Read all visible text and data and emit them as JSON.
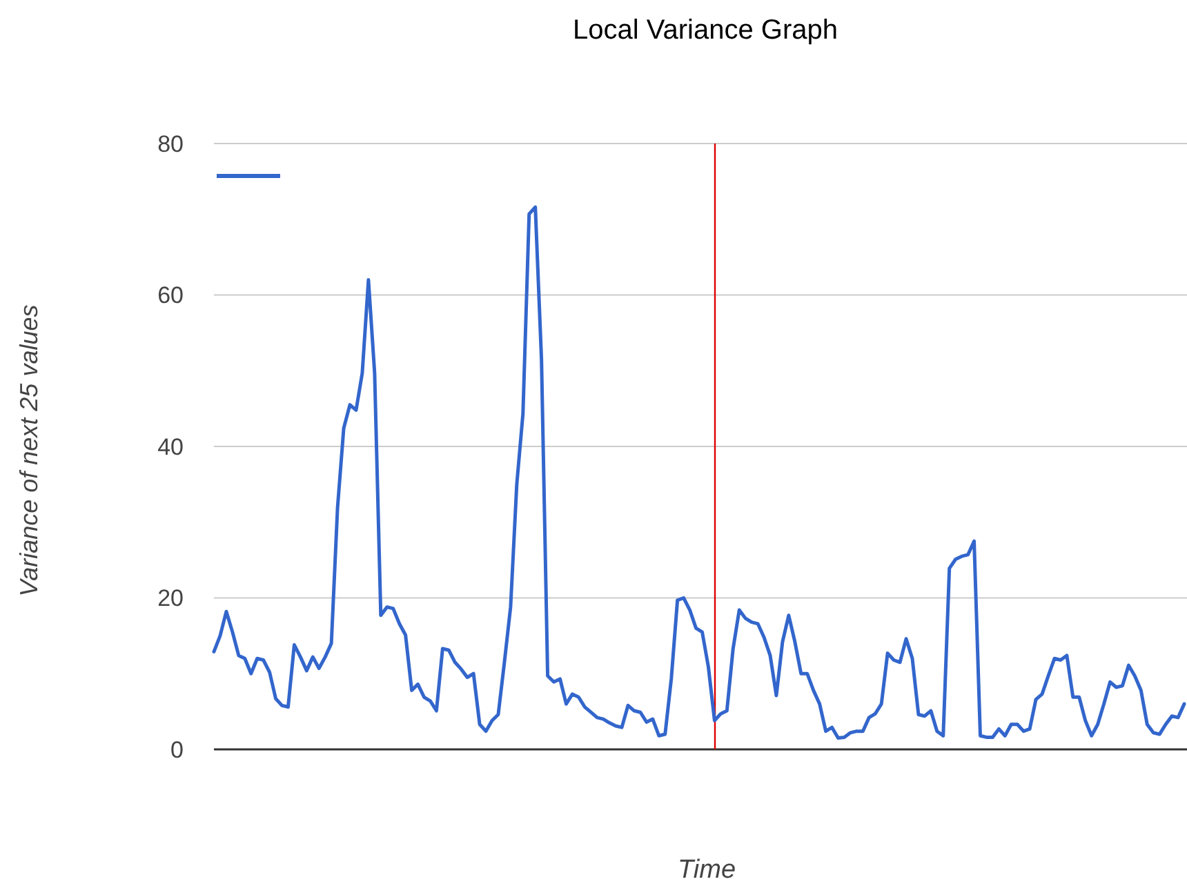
{
  "chart_data": {
    "type": "line",
    "title": "Local Variance Graph",
    "xlabel": "Time",
    "ylabel": "Variance of next 25 values",
    "categories": [
      null,
      null,
      null,
      null,
      null,
      null,
      null,
      null,
      null,
      null,
      null,
      null,
      null,
      null,
      null,
      null,
      null,
      null,
      null,
      null,
      null,
      null,
      null,
      null,
      null,
      null,
      null,
      null,
      null,
      null,
      null,
      null,
      null,
      null,
      null,
      null,
      null,
      null,
      null,
      null,
      null,
      null,
      null,
      null,
      null,
      null,
      null,
      null,
      null,
      null,
      null,
      null,
      null,
      null,
      null,
      null,
      null,
      null,
      null,
      null,
      null,
      null,
      null,
      null,
      null,
      null,
      null,
      null,
      null,
      null,
      null,
      null,
      null,
      null,
      null,
      null,
      null,
      null,
      null,
      null,
      null,
      null,
      null,
      null,
      null,
      null,
      null,
      null,
      null,
      null,
      null,
      null,
      null,
      null,
      null,
      null,
      null,
      null,
      null,
      null,
      null,
      null,
      null,
      null,
      null,
      null,
      null,
      null,
      null,
      null,
      null,
      null,
      null,
      null,
      null,
      null,
      null,
      null,
      null,
      null,
      null,
      null,
      null,
      null,
      null,
      null,
      null,
      null,
      null,
      null,
      null,
      null,
      null,
      null,
      null,
      null,
      null,
      null,
      null,
      null,
      null,
      null,
      null,
      null,
      null,
      null,
      null,
      null,
      null,
      null,
      null,
      null,
      null,
      null,
      null,
      null,
      null,
      null
    ],
    "series": [
      {
        "color": "#3366cc",
        "values": [
          12.9,
          15,
          18.2,
          15.5,
          12.4,
          12,
          10,
          12,
          11.8,
          10.2,
          6.7,
          5.8,
          5.6,
          13.8,
          12.2,
          10.4,
          12.2,
          10.7,
          12.2,
          14,
          31.9,
          42.4,
          45.5,
          44.8,
          49.7,
          62,
          49.7,
          17.7,
          18.8,
          18.6,
          16.6,
          15.1,
          7.8,
          8.6,
          6.9,
          6.4,
          5.1,
          13.3,
          13.1,
          11.5,
          10.6,
          9.5,
          10,
          3.3,
          2.4,
          3.8,
          4.6,
          11.5,
          18.8,
          35,
          44.3,
          70.7,
          71.6,
          51.5,
          9.7,
          8.9,
          9.3,
          6,
          7.3,
          6.9,
          5.6,
          4.9,
          4.2,
          4,
          3.5,
          3.1,
          2.9,
          5.8,
          5.1,
          4.9,
          3.6,
          4,
          1.8,
          2,
          9.3,
          19.7,
          20,
          18.4,
          16,
          15.5,
          10.9,
          3.8,
          4.7,
          5.1,
          13.3,
          18.4,
          17.3,
          16.8,
          16.6,
          14.8,
          12.4,
          7.1,
          14.2,
          17.7,
          14.2,
          10,
          10,
          7.8,
          6,
          2.4,
          2.9,
          1.5,
          1.6,
          2.2,
          2.4,
          2.4,
          4.2,
          4.7,
          6,
          12.7,
          11.8,
          11.5,
          14.6,
          12,
          4.6,
          4.4,
          5.1,
          2.4,
          1.8,
          23.9,
          25.1,
          25.5,
          25.7,
          27.5,
          1.8,
          1.6,
          1.6,
          2.7,
          1.8,
          3.3,
          3.3,
          2.4,
          2.7,
          6.6,
          7.3,
          9.7,
          12,
          11.8,
          12.4,
          6.9,
          6.9,
          3.8,
          1.8,
          3.3,
          6,
          8.9,
          8.2,
          8.4,
          11.1,
          9.7,
          7.8,
          3.3,
          2.2,
          2,
          3.3,
          4.4,
          4.2,
          6
        ]
      }
    ],
    "ylim": [
      0,
      80
    ],
    "yticks": [
      0,
      20,
      40,
      60,
      80
    ],
    "grid": "y",
    "marker": "none",
    "line_style": "solid"
  }
}
